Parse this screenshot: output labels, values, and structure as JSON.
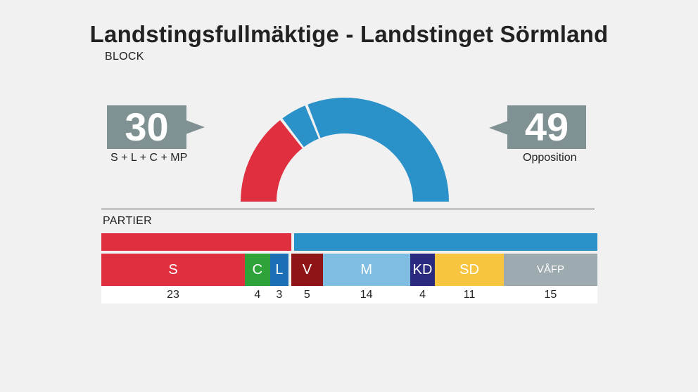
{
  "chart_data": {
    "type": "bar",
    "title": "Landstingsfullmäktige - Landstinget Sörmland",
    "block_label": "BLOCK",
    "partier_label": "PARTIER",
    "blocks": [
      {
        "seats": "30",
        "caption": "S + L + C + MP",
        "color": "#e03040"
      },
      {
        "seats": "49",
        "caption": "Opposition",
        "color": "#2b91c9"
      }
    ],
    "hemicycle": {
      "total": 79,
      "segments": [
        {
          "value": 23,
          "color": "#e03040"
        },
        {
          "value": 7,
          "color": "#2b91c9"
        },
        {
          "value": 49,
          "color": "#2b91c9"
        }
      ]
    },
    "parties": [
      {
        "label": "S",
        "seats": 23,
        "color": "#e03040",
        "bloc": 0
      },
      {
        "label": "C",
        "seats": 4,
        "color": "#2ea33a",
        "bloc": 0
      },
      {
        "label": "L",
        "seats": 3,
        "color": "#1c6fb5",
        "bloc": 0
      },
      {
        "label": "V",
        "seats": 5,
        "color": "#8e1418",
        "bloc": 1
      },
      {
        "label": "M",
        "seats": 14,
        "color": "#7fbde3",
        "bloc": 1
      },
      {
        "label": "KD",
        "seats": 4,
        "color": "#2a2a7e",
        "bloc": 1
      },
      {
        "label": "SD",
        "seats": 11,
        "color": "#f7c53f",
        "bloc": 1
      },
      {
        "label": "VÅFP",
        "seats": 15,
        "color": "#9daab0",
        "bloc": 1
      }
    ]
  }
}
